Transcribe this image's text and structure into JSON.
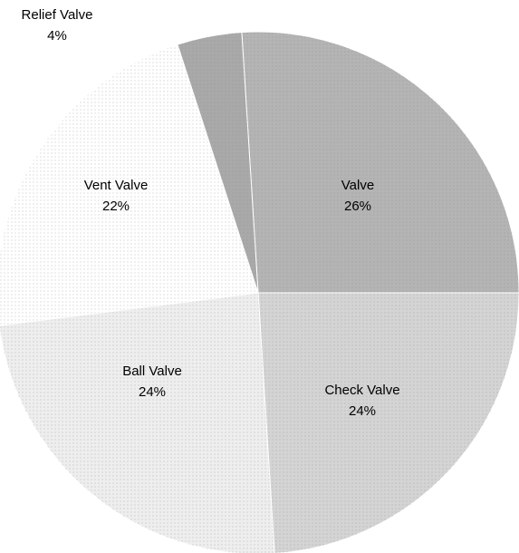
{
  "chart_data": {
    "type": "pie",
    "categories": [
      "Valve",
      "Check Valve",
      "Ball Valve",
      "Vent Valve",
      "Relief Valve"
    ],
    "values": [
      26,
      24,
      24,
      22,
      4
    ],
    "value_labels": [
      "26%",
      "24%",
      "24%",
      "22%",
      "4%"
    ],
    "colors": [
      "#b4b4b4",
      "#d4d4d4",
      "#eeeeee",
      "#ffffff",
      "#a9a9a9"
    ]
  }
}
